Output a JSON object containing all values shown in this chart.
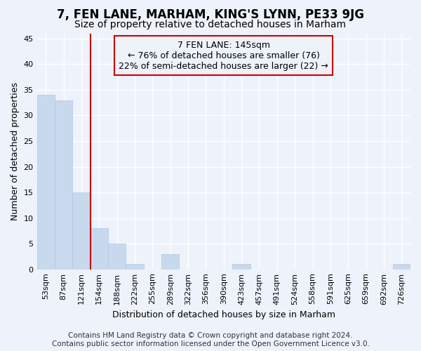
{
  "title": "7, FEN LANE, MARHAM, KING'S LYNN, PE33 9JG",
  "subtitle": "Size of property relative to detached houses in Marham",
  "xlabel": "Distribution of detached houses by size in Marham",
  "ylabel": "Number of detached properties",
  "categories": [
    "53sqm",
    "87sqm",
    "121sqm",
    "154sqm",
    "188sqm",
    "222sqm",
    "255sqm",
    "289sqm",
    "322sqm",
    "356sqm",
    "390sqm",
    "423sqm",
    "457sqm",
    "491sqm",
    "524sqm",
    "558sqm",
    "591sqm",
    "625sqm",
    "659sqm",
    "692sqm",
    "726sqm"
  ],
  "values": [
    34,
    33,
    15,
    8,
    5,
    1,
    0,
    3,
    0,
    0,
    0,
    1,
    0,
    0,
    0,
    0,
    0,
    0,
    0,
    0,
    1
  ],
  "bar_color": "#c8d9ee",
  "bar_edgecolor": "#b0c8e0",
  "vline_x": 2.5,
  "vline_color": "#cc0000",
  "annotation_text": "7 FEN LANE: 145sqm\n← 76% of detached houses are smaller (76)\n22% of semi-detached houses are larger (22) →",
  "annotation_box_edgecolor": "#cc0000",
  "ylim": [
    0,
    46
  ],
  "yticks": [
    0,
    5,
    10,
    15,
    20,
    25,
    30,
    35,
    40,
    45
  ],
  "footer": "Contains HM Land Registry data © Crown copyright and database right 2024.\nContains public sector information licensed under the Open Government Licence v3.0.",
  "bg_color": "#eef2fa",
  "grid_color": "#ffffff",
  "title_fontsize": 12,
  "subtitle_fontsize": 10,
  "axis_label_fontsize": 9,
  "tick_fontsize": 8,
  "annotation_fontsize": 9,
  "footer_fontsize": 7.5
}
